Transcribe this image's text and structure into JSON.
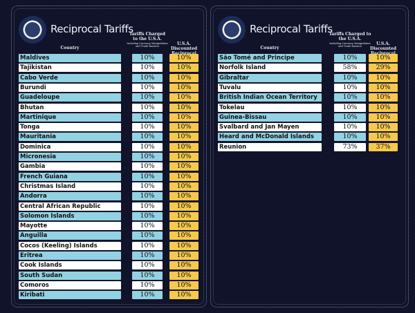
{
  "panels": [
    {
      "title": "Reciprocal Tariffs",
      "col_country": "Country",
      "col_charged": "Tariffs Charged to the U.S.A.",
      "col_charged_note": "Including Currency Manipulation and Trade Barriers",
      "col_discounted": "U.S.A. Discounted Reciprocal Tariffs",
      "rows": [
        {
          "country": "Maldives",
          "charged": "10%",
          "discounted": "10%"
        },
        {
          "country": "Tajikistan",
          "charged": "10%",
          "discounted": "10%"
        },
        {
          "country": "Cabo Verde",
          "charged": "10%",
          "discounted": "10%"
        },
        {
          "country": "Burundi",
          "charged": "10%",
          "discounted": "10%"
        },
        {
          "country": "Guadeloupe",
          "charged": "10%",
          "discounted": "10%"
        },
        {
          "country": "Bhutan",
          "charged": "10%",
          "discounted": "10%"
        },
        {
          "country": "Martinique",
          "charged": "10%",
          "discounted": "10%"
        },
        {
          "country": "Tonga",
          "charged": "10%",
          "discounted": "10%"
        },
        {
          "country": "Mauritania",
          "charged": "10%",
          "discounted": "10%"
        },
        {
          "country": "Dominica",
          "charged": "10%",
          "discounted": "10%"
        },
        {
          "country": "Micronesia",
          "charged": "10%",
          "discounted": "10%"
        },
        {
          "country": "Gambia",
          "charged": "10%",
          "discounted": "10%"
        },
        {
          "country": "French Guiana",
          "charged": "10%",
          "discounted": "10%"
        },
        {
          "country": "Christmas Island",
          "charged": "10%",
          "discounted": "10%"
        },
        {
          "country": "Andorra",
          "charged": "10%",
          "discounted": "10%"
        },
        {
          "country": "Central African Republic",
          "charged": "10%",
          "discounted": "10%"
        },
        {
          "country": "Solomon Islands",
          "charged": "10%",
          "discounted": "10%"
        },
        {
          "country": "Mayotte",
          "charged": "10%",
          "discounted": "10%"
        },
        {
          "country": "Anguilla",
          "charged": "10%",
          "discounted": "10%"
        },
        {
          "country": "Cocos (Keeling) Islands",
          "charged": "10%",
          "discounted": "10%"
        },
        {
          "country": "Eritrea",
          "charged": "10%",
          "discounted": "10%"
        },
        {
          "country": "Cook Islands",
          "charged": "10%",
          "discounted": "10%"
        },
        {
          "country": "South Sudan",
          "charged": "10%",
          "discounted": "10%"
        },
        {
          "country": "Comoros",
          "charged": "10%",
          "discounted": "10%"
        },
        {
          "country": "Kiribati",
          "charged": "10%",
          "discounted": "10%"
        }
      ]
    },
    {
      "title": "Reciprocal Tariffs",
      "col_country": "Country",
      "col_charged": "Tariffs Charged to the U.S.A.",
      "col_charged_note": "Including Currency Manipulation and Trade Barriers",
      "col_discounted": "U.S.A. Discounted Reciprocal Tariffs",
      "rows": [
        {
          "country": "São Tomé and Principe",
          "charged": "10%",
          "discounted": "10%"
        },
        {
          "country": "Norfolk Island",
          "charged": "58%",
          "discounted": "29%"
        },
        {
          "country": "Gibraltar",
          "charged": "10%",
          "discounted": "10%"
        },
        {
          "country": "Tuvalu",
          "charged": "10%",
          "discounted": "10%"
        },
        {
          "country": "British Indian Ocean Territory",
          "charged": "10%",
          "discounted": "10%"
        },
        {
          "country": "Tokelau",
          "charged": "10%",
          "discounted": "10%"
        },
        {
          "country": "Guinea-Bissau",
          "charged": "10%",
          "discounted": "10%"
        },
        {
          "country": "Svalbard and Jan Mayen",
          "charged": "10%",
          "discounted": "10%"
        },
        {
          "country": "Heard and McDonald Islands",
          "charged": "10%",
          "discounted": "10%"
        },
        {
          "country": "Reunion",
          "charged": "73%",
          "discounted": "37%"
        }
      ]
    }
  ],
  "colors": {
    "background": "#11132a",
    "row_blue": "#93d2e2",
    "row_white": "#ffffff",
    "discount_yellow": "#f6c94c"
  },
  "icons": {
    "seal": "presidential-seal-icon"
  }
}
